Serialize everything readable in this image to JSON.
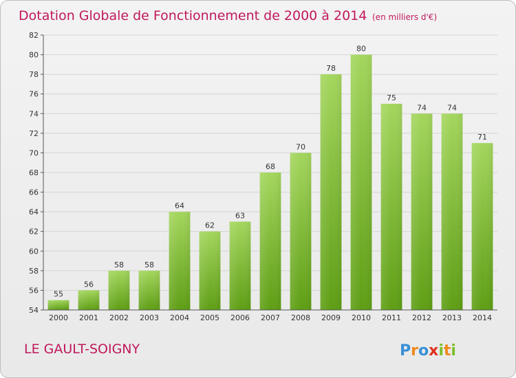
{
  "chart_data": {
    "type": "bar",
    "title": "Dotation Globale de Fonctionnement de 2000 à 2014",
    "subtitle": "(en milliers d'€)",
    "categories": [
      "2000",
      "2001",
      "2002",
      "2003",
      "2004",
      "2005",
      "2006",
      "2007",
      "2008",
      "2009",
      "2010",
      "2011",
      "2012",
      "2013",
      "2014"
    ],
    "values": [
      55,
      56,
      58,
      58,
      64,
      62,
      63,
      68,
      70,
      78,
      80,
      75,
      74,
      74,
      71
    ],
    "ylim": [
      54,
      82
    ],
    "yticks": [
      54,
      56,
      58,
      60,
      62,
      64,
      66,
      68,
      70,
      72,
      74,
      76,
      78,
      80,
      82
    ],
    "xlabel": "",
    "ylabel": "",
    "grid": true
  },
  "commune": "LE GAULT-SOIGNY",
  "logo": {
    "text": "Proxiti",
    "letters": [
      {
        "ch": "P",
        "color": "#3a8fd6"
      },
      {
        "ch": "r",
        "color": "#f08a1c"
      },
      {
        "ch": "o",
        "color": "#3a8fd6"
      },
      {
        "ch": "x",
        "color": "#e0301e"
      },
      {
        "ch": "i",
        "color": "#7cbf2a"
      },
      {
        "ch": "t",
        "color": "#f08a1c"
      },
      {
        "ch": "i",
        "color": "#7cbf2a"
      }
    ]
  },
  "colors": {
    "accent": "#c0185b",
    "bar_top": "#a4d65e",
    "bar_bottom": "#5e9e14",
    "grid": "#d4d4d4",
    "axis": "#555555"
  }
}
